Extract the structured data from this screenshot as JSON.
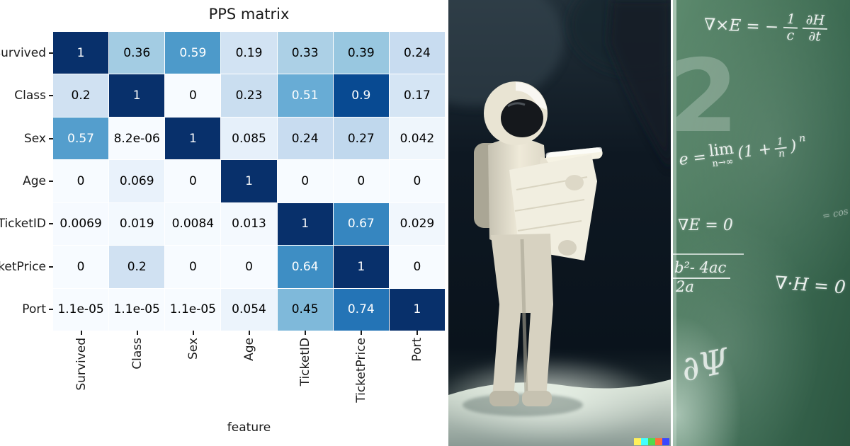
{
  "heatmap": {
    "title": "PPS matrix",
    "xlabel": "feature",
    "colormap_name": "Blues",
    "text_on_dark": "#ffffff",
    "text_on_light": "#000000"
  },
  "chart_data": {
    "type": "heatmap",
    "title": "PPS matrix",
    "xlabel": "feature",
    "ylabel": "",
    "vmin": 0,
    "vmax": 1,
    "x_categories": [
      "Survived",
      "Class",
      "Sex",
      "Age",
      "TicketID",
      "TicketPrice",
      "Port"
    ],
    "y_categories": [
      "Survived",
      "Class",
      "Sex",
      "Age",
      "TicketID",
      "TicketPrice",
      "Port"
    ],
    "values": [
      [
        1,
        0.36,
        0.59,
        0.19,
        0.33,
        0.39,
        0.24
      ],
      [
        0.2,
        1,
        0,
        0.23,
        0.51,
        0.9,
        0.17
      ],
      [
        0.57,
        8.2e-06,
        1,
        0.085,
        0.24,
        0.27,
        0.042
      ],
      [
        0,
        0.069,
        0,
        1,
        0,
        0,
        0
      ],
      [
        0.0069,
        0.019,
        0.0084,
        0.013,
        1,
        0.67,
        0.029
      ],
      [
        0,
        0.2,
        0,
        0,
        0.64,
        1,
        0
      ],
      [
        1.1e-05,
        1.1e-05,
        1.1e-05,
        0.054,
        0.45,
        0.74,
        1
      ]
    ],
    "values_display": [
      [
        "1",
        "0.36",
        "0.59",
        "0.19",
        "0.33",
        "0.39",
        "0.24"
      ],
      [
        "0.2",
        "1",
        "0",
        "0.23",
        "0.51",
        "0.9",
        "0.17"
      ],
      [
        "0.57",
        "8.2e-06",
        "1",
        "0.085",
        "0.24",
        "0.27",
        "0.042"
      ],
      [
        "0",
        "0.069",
        "0",
        "1",
        "0",
        "0",
        "0"
      ],
      [
        "0.0069",
        "0.019",
        "0.0084",
        "0.013",
        "1",
        "0.67",
        "0.029"
      ],
      [
        "0",
        "0.2",
        "0",
        "0",
        "0.64",
        "1",
        "0"
      ],
      [
        "1.1e-05",
        "1.1e-05",
        "1.1e-05",
        "0.054",
        "0.45",
        "0.74",
        "1"
      ]
    ],
    "colormap_stops": [
      [
        0,
        "#f7fbff"
      ],
      [
        0.125,
        "#deebf7"
      ],
      [
        0.25,
        "#c6dbef"
      ],
      [
        0.375,
        "#9ecae1"
      ],
      [
        0.5,
        "#6baed6"
      ],
      [
        0.625,
        "#4292c6"
      ],
      [
        0.75,
        "#2171b5"
      ],
      [
        0.875,
        "#08519c"
      ],
      [
        1,
        "#08306b"
      ]
    ],
    "grid": "thin-white-lines",
    "legend": "none"
  },
  "astronaut_panel": {
    "description": "painting of astronaut in white spacesuit reading a large scroll on a moon-like surface",
    "watermark_colors": [
      "#fff05a",
      "#43ffff",
      "#51da4c",
      "#ff6e3c",
      "#3b46ff"
    ]
  },
  "chalkboard": {
    "big_numeral": "2",
    "curl_lhs": "∇×E = −",
    "curl_f1_num": "1",
    "curl_f1_den": "c",
    "curl_f2_num": "∂H",
    "curl_f2_den": "∂t",
    "euler_lhs": "e =",
    "euler_lim": "lim",
    "euler_limsub": "n→∞",
    "euler_open": "(1 +",
    "euler_f_num": "1",
    "euler_f_den": "n",
    "euler_close": ")",
    "euler_sup": "n",
    "div_e": "∇E = 0",
    "faint_note": "= cos",
    "quad_num": "b²- 4ac",
    "quad_den": "2a",
    "div_h": "∇·H = 0",
    "scribble": "∂Ψ"
  }
}
